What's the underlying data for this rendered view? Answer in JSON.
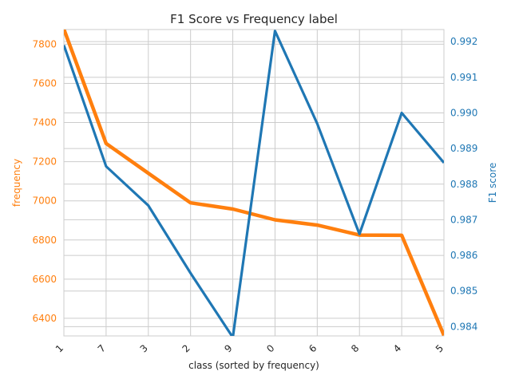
{
  "chart_data": {
    "type": "line",
    "title": "F1 Score vs Frequency label",
    "xlabel": "class (sorted by frequency)",
    "ylabel_left": "frequency",
    "ylabel_right": "F1 score",
    "categories": [
      "1",
      "7",
      "3",
      "2",
      "9",
      "0",
      "6",
      "8",
      "4",
      "5"
    ],
    "left_ylim": [
      6310,
      7875
    ],
    "left_ticks": [
      6400,
      6600,
      6800,
      7000,
      7200,
      7400,
      7600,
      7800
    ],
    "right_ylim": [
      0.98374,
      0.99234
    ],
    "right_ticks": [
      "0.984",
      "0.985",
      "0.986",
      "0.987",
      "0.988",
      "0.989",
      "0.990",
      "0.991",
      "0.992"
    ],
    "grid": true,
    "series": [
      {
        "axis": "left",
        "color": "#ff7f0e",
        "values": [
          7877,
          7293,
          7141,
          6990,
          6958,
          6903,
          6876,
          6825,
          6824,
          6313
        ]
      },
      {
        "axis": "right",
        "color": "#1f77b4",
        "values": [
          0.9919,
          0.9885,
          0.9874,
          0.9855,
          0.9837,
          0.9923,
          0.9897,
          0.9866,
          0.99,
          0.9886
        ]
      }
    ],
    "colors": {
      "left_axis": "#ff7f0e",
      "right_axis": "#1f77b4",
      "grid": "#cccccc",
      "text": "#262626"
    }
  }
}
